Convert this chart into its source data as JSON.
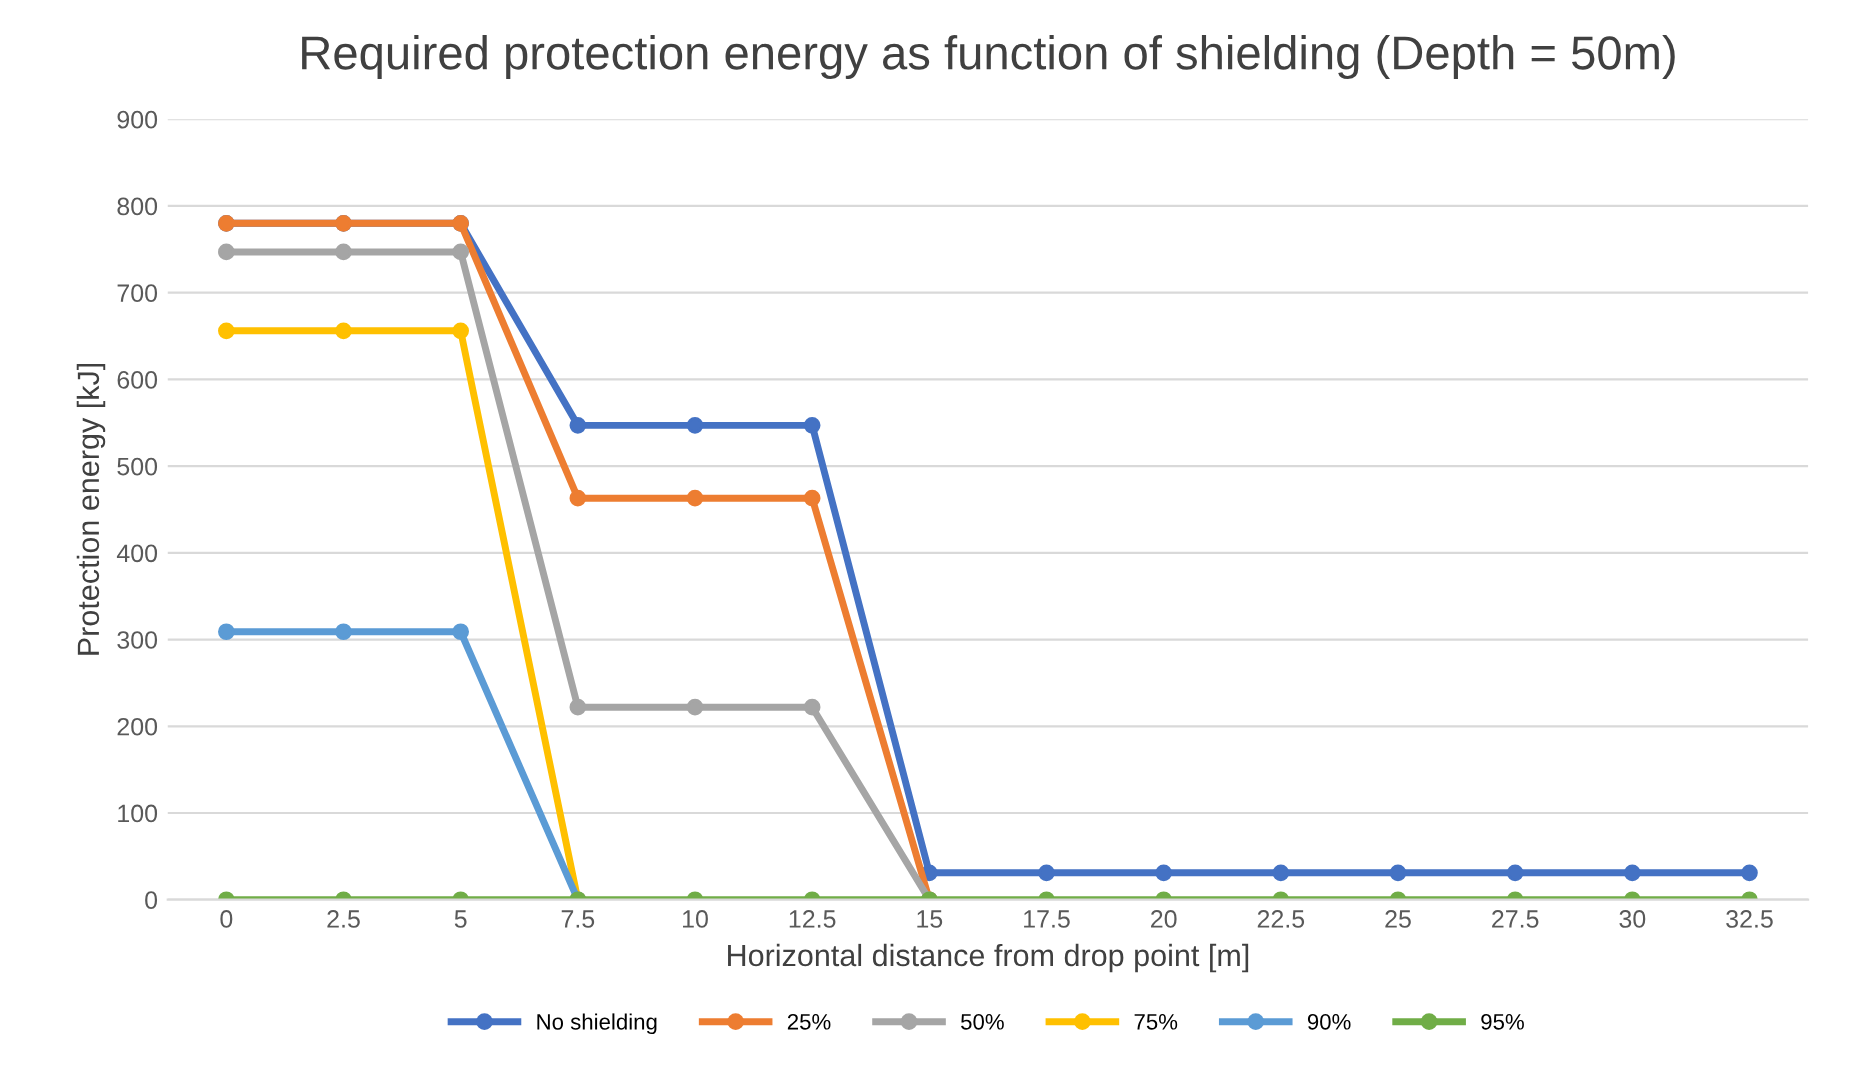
{
  "chart_data": {
    "type": "line",
    "title": "Required protection energy as function of shielding (Depth = 50m)",
    "xlabel": "Horizontal distance from drop point [m]",
    "ylabel": "Protection energy [kJ]",
    "categories": [
      "0",
      "2.5",
      "5",
      "7.5",
      "10",
      "12.5",
      "15",
      "17.5",
      "20",
      "22.5",
      "25",
      "27.5",
      "30",
      "32.5"
    ],
    "series": [
      {
        "name": "No shielding",
        "color": "#4472c4",
        "values": [
          780,
          780,
          780,
          547,
          547,
          547,
          31,
          31,
          31,
          31,
          31,
          31,
          31,
          31
        ]
      },
      {
        "name": "25%",
        "color": "#ed7d31",
        "values": [
          780,
          780,
          780,
          463,
          463,
          463,
          0,
          null,
          null,
          null,
          null,
          null,
          null,
          null
        ]
      },
      {
        "name": "50%",
        "color": "#a5a5a5",
        "values": [
          747,
          747,
          747,
          222,
          222,
          222,
          0,
          null,
          null,
          null,
          null,
          null,
          null,
          null
        ]
      },
      {
        "name": "75%",
        "color": "#ffc000",
        "values": [
          656,
          656,
          656,
          0,
          null,
          null,
          null,
          null,
          null,
          null,
          null,
          null,
          null,
          null
        ]
      },
      {
        "name": "90%",
        "color": "#5b9bd5",
        "values": [
          309,
          309,
          309,
          0,
          null,
          null,
          null,
          null,
          null,
          null,
          null,
          null,
          null,
          null
        ]
      },
      {
        "name": "95%",
        "color": "#70ad47",
        "values": [
          0,
          0,
          0,
          0,
          0,
          0,
          0,
          0,
          0,
          0,
          0,
          0,
          0,
          0
        ]
      }
    ],
    "ylim": [
      0,
      900
    ],
    "yticks": [
      0,
      100,
      200,
      300,
      400,
      500,
      600,
      700,
      800,
      900
    ],
    "grid": "y",
    "legend": "bottom",
    "marker": "circle",
    "line_style": "solid"
  }
}
